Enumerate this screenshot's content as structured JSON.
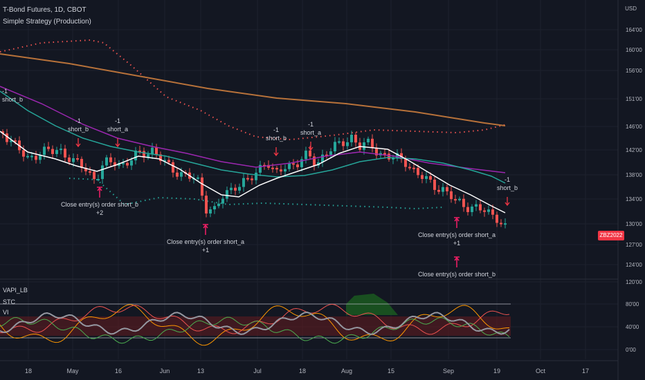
{
  "header": {
    "symbol_title": "T-Bond Futures, 1D, CBOT",
    "strategy_name": "Simple Strategy (Production)",
    "currency": "USD"
  },
  "price_badge": "ZBZ2022",
  "oscillators": {
    "vapi": "VAPI_LB",
    "stc": "STC",
    "vi": "VI"
  },
  "chart_data": {
    "type": "candlestick",
    "x_ticks": [
      "18",
      "May",
      "16",
      "Jun",
      "13",
      "Jul",
      "18",
      "Aug",
      "15",
      "Sep",
      "19",
      "Oct",
      "17"
    ],
    "y_ticks_price": [
      "164'00",
      "160'00",
      "156'00",
      "151'00",
      "146'00",
      "142'00",
      "138'00",
      "134'00",
      "130'00",
      "127'00",
      "124'00"
    ],
    "y_ticks_oscillator": [
      "120'00",
      "80'00",
      "40'00",
      "0'00"
    ],
    "signals": [
      {
        "type": "entry",
        "lines": [
          "-1",
          "short_b"
        ]
      },
      {
        "type": "entry",
        "lines": [
          "-1",
          "short_a"
        ]
      },
      {
        "type": "exit",
        "lines": [
          "Close entry(s) order short_b",
          "+2"
        ]
      },
      {
        "type": "exit",
        "lines": [
          "Close entry(s) order short_a",
          "+1"
        ]
      },
      {
        "type": "entry",
        "lines": [
          "-1",
          "short_b"
        ]
      },
      {
        "type": "entry",
        "lines": [
          "-1",
          "short_a"
        ]
      },
      {
        "type": "exit",
        "lines": [
          "Close entry(s) order short_a",
          "+1"
        ]
      },
      {
        "type": "exit",
        "lines": [
          "Close entry(s) order short_b"
        ]
      },
      {
        "type": "entry",
        "lines": [
          "-1",
          "short_b"
        ]
      },
      {
        "type": "partial",
        "lines": [
          "-1",
          "short_b"
        ]
      }
    ],
    "colors": {
      "up": "#26a69a",
      "down": "#ef5350",
      "sma_fast": "#ffffff",
      "sma_mid": "#26a69a",
      "sma_slow": "#9c27b0",
      "sma_long": "#b8723a",
      "band_upper": "#ef5350",
      "band_lower": "#26a69a",
      "signal_arrow": "#e91e63"
    }
  }
}
